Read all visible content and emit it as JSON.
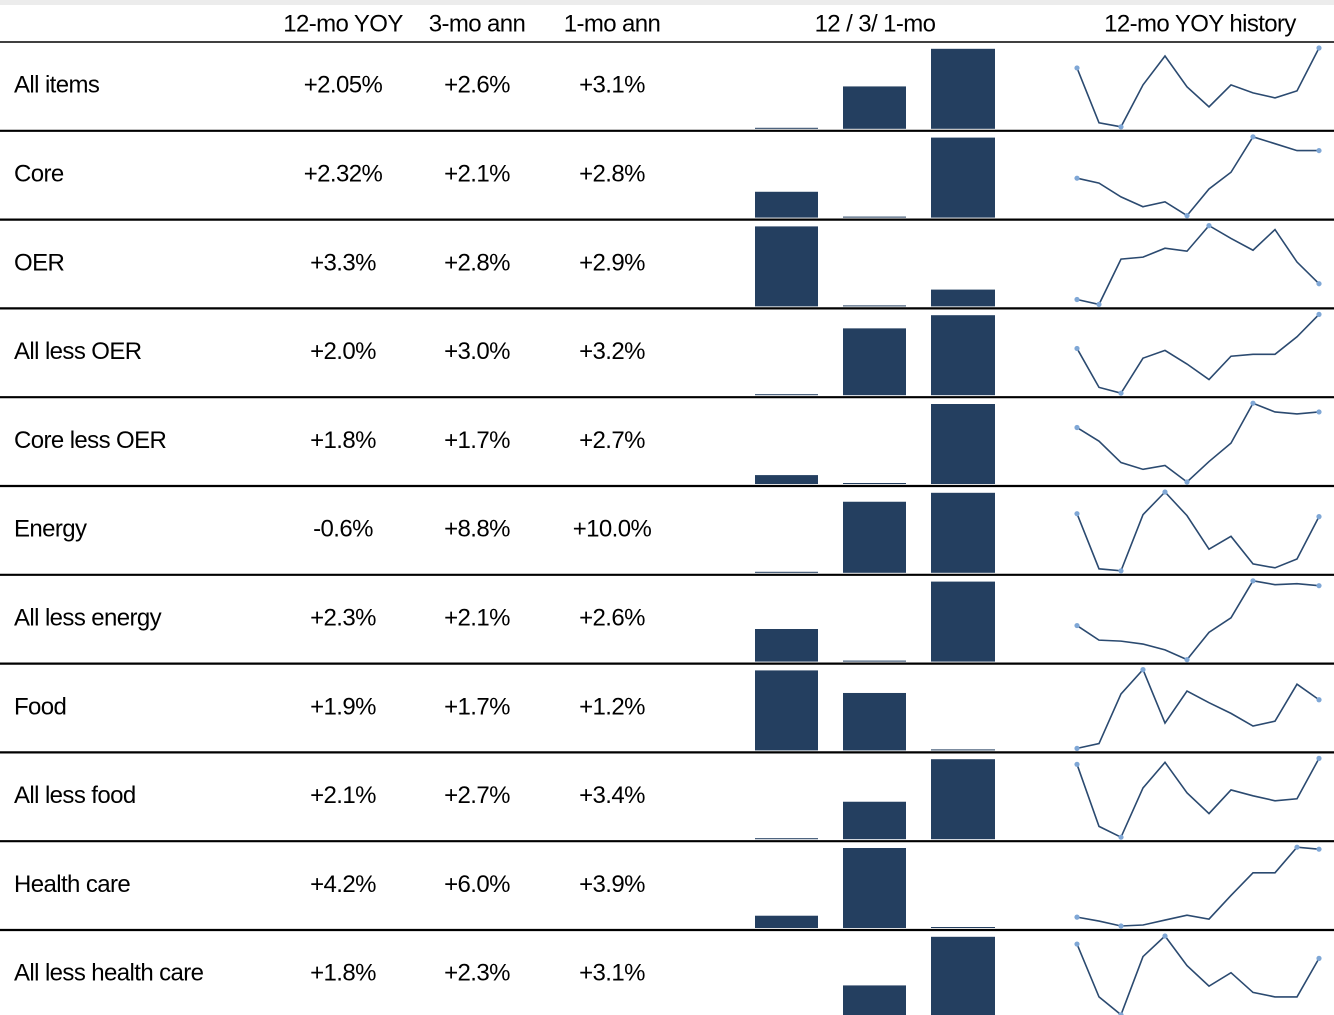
{
  "header": {
    "label": "",
    "yoy": "12-mo YOY",
    "ann3": "3-mo ann",
    "ann1": "1-mo ann",
    "bars": "12 /  3/ 1-mo",
    "history": "12-mo YOY history"
  },
  "rows": [
    {
      "label": "All items",
      "yoy": {
        "value": 2.05,
        "label": "+2.05%"
      },
      "ann3": {
        "value": 2.6,
        "label": "+2.6%"
      },
      "ann1": {
        "value": 3.1,
        "label": "+3.1%"
      },
      "history": [
        63,
        8,
        4,
        46,
        75,
        44,
        24,
        46,
        38,
        33,
        40,
        83
      ]
    },
    {
      "label": "Core",
      "yoy": {
        "value": 2.32,
        "label": "+2.32%"
      },
      "ann3": {
        "value": 2.1,
        "label": "+2.1%"
      },
      "ann1": {
        "value": 2.8,
        "label": "+2.8%"
      },
      "history": [
        42,
        37,
        23,
        13,
        18,
        4,
        31,
        48,
        84,
        77,
        70,
        70
      ]
    },
    {
      "label": "OER",
      "yoy": {
        "value": 3.3,
        "label": "+3.3%"
      },
      "ann3": {
        "value": 2.8,
        "label": "+2.8%"
      },
      "ann1": {
        "value": 2.9,
        "label": "+2.9%"
      },
      "history": [
        9,
        4,
        50,
        52,
        61,
        58,
        84,
        71,
        59,
        80,
        47,
        25
      ]
    },
    {
      "label": "All less OER",
      "yoy": {
        "value": 2.0,
        "label": "+2.0%"
      },
      "ann3": {
        "value": 3.0,
        "label": "+3.0%"
      },
      "ann1": {
        "value": 3.2,
        "label": "+3.2%"
      },
      "history": [
        49,
        9,
        3,
        39,
        47,
        33,
        17,
        41,
        43,
        43,
        61,
        84
      ]
    },
    {
      "label": "Core less OER",
      "yoy": {
        "value": 1.8,
        "label": "+1.8%"
      },
      "ann3": {
        "value": 1.7,
        "label": "+1.7%"
      },
      "ann1": {
        "value": 2.7,
        "label": "+2.7%"
      },
      "history": [
        60,
        46,
        24,
        17,
        21,
        4,
        25,
        44,
        85,
        76,
        74,
        76
      ]
    },
    {
      "label": "Energy",
      "yoy": {
        "value": -0.6,
        "label": "-0.6%"
      },
      "ann3": {
        "value": 8.8,
        "label": "+8.8%"
      },
      "ann1": {
        "value": 10.0,
        "label": "+10.0%"
      },
      "history": [
        62,
        6,
        4,
        61,
        84,
        60,
        26,
        39,
        11,
        7,
        16,
        59
      ]
    },
    {
      "label": "All less energy",
      "yoy": {
        "value": 2.3,
        "label": "+2.3%"
      },
      "ann3": {
        "value": 2.1,
        "label": "+2.1%"
      },
      "ann1": {
        "value": 2.6,
        "label": "+2.6%"
      },
      "history": [
        39,
        24,
        23,
        20,
        14,
        4,
        32,
        47,
        85,
        81,
        82,
        80
      ]
    },
    {
      "label": "Food",
      "yoy": {
        "value": 1.9,
        "label": "+1.9%"
      },
      "ann3": {
        "value": 1.7,
        "label": "+1.7%"
      },
      "ann1": {
        "value": 1.2,
        "label": "+1.2%"
      },
      "history": [
        4,
        9,
        60,
        85,
        30,
        63,
        51,
        40,
        27,
        32,
        70,
        54
      ]
    },
    {
      "label": "All less food",
      "yoy": {
        "value": 2.1,
        "label": "+2.1%"
      },
      "ann3": {
        "value": 2.7,
        "label": "+2.7%"
      },
      "ann1": {
        "value": 3.4,
        "label": "+3.4%"
      },
      "history": [
        78,
        15,
        4,
        54,
        80,
        49,
        28,
        52,
        46,
        41,
        43,
        84
      ]
    },
    {
      "label": "Health care",
      "yoy": {
        "value": 4.2,
        "label": "+4.2%"
      },
      "ann3": {
        "value": 6.0,
        "label": "+6.0%"
      },
      "ann1": {
        "value": 3.9,
        "label": "+3.9%"
      },
      "history": [
        13,
        9,
        4,
        5,
        10,
        15,
        11,
        35,
        58,
        58,
        84,
        82
      ]
    },
    {
      "label": "All less health care",
      "yoy": {
        "value": 1.8,
        "label": "+1.8%"
      },
      "ann3": {
        "value": 2.3,
        "label": "+2.3%"
      },
      "ann1": {
        "value": 3.1,
        "label": "+3.1%"
      },
      "history": [
        74,
        15,
        -5,
        60,
        83,
        50,
        27,
        42,
        20,
        15,
        15,
        58
      ]
    }
  ]
}
